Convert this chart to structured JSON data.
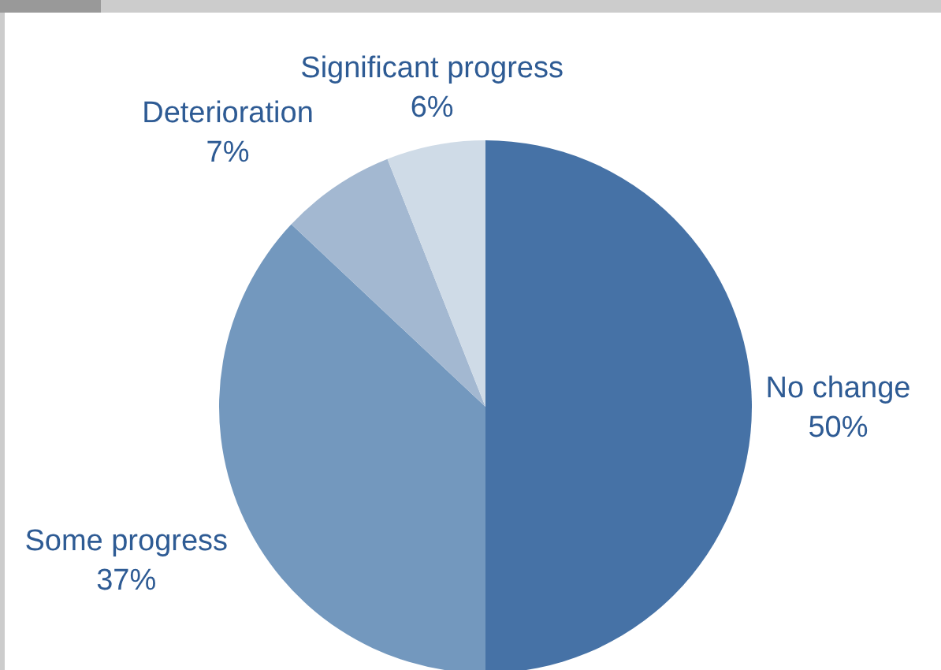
{
  "chart_data": {
    "type": "pie",
    "categories": [
      "No change",
      "Some progress",
      "Deterioration",
      "Significant progress"
    ],
    "values": [
      50,
      37,
      7,
      6
    ],
    "colors": [
      "#4672a6",
      "#7398be",
      "#a3b8d1",
      "#cfdbe7"
    ],
    "value_labels": [
      "50%",
      "37%",
      "7%",
      "6%"
    ]
  }
}
